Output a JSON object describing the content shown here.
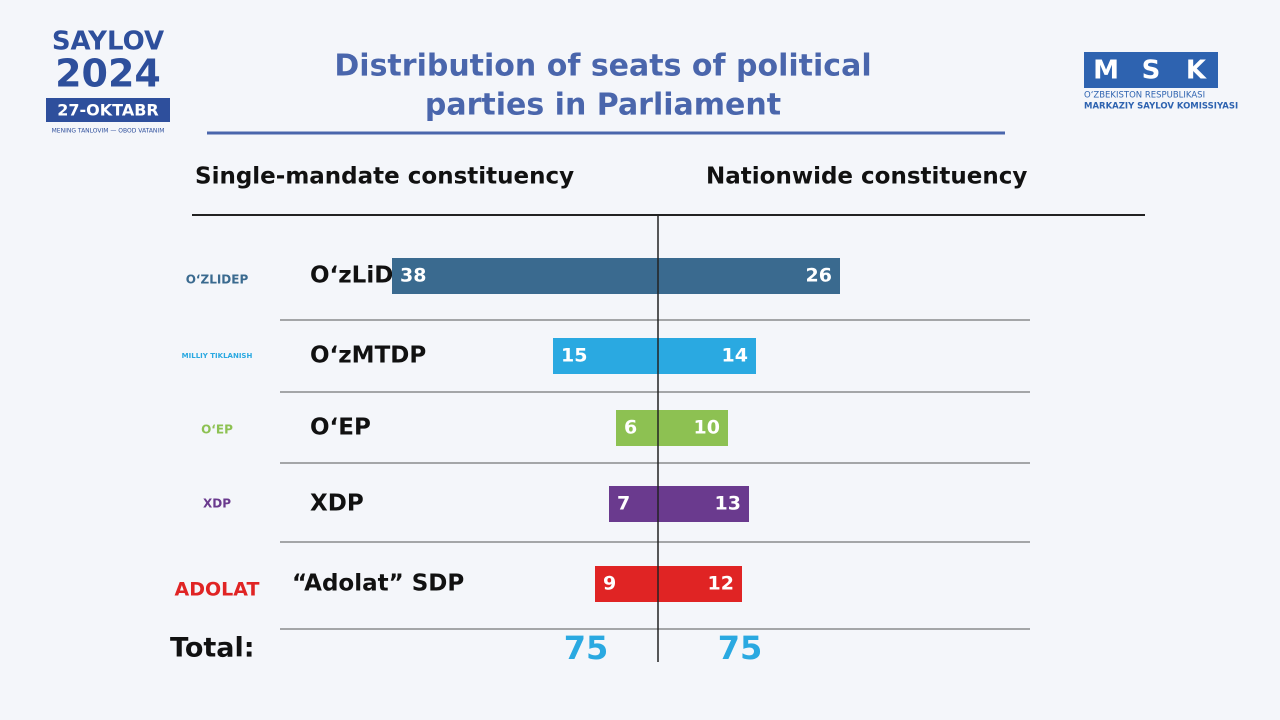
{
  "header": {
    "brand": "SAYLOV",
    "year": "2024",
    "date": "27-OKTABR",
    "slogan": "MENING TANLOVIM — OBOD VATANIM",
    "msk": [
      "M",
      "S",
      "K"
    ],
    "msk_line1": "O‘ZBEKISTON RESPUBLIKASI",
    "msk_line2": "MARKAZIY SAYLOV KOMISSIYASI"
  },
  "party_logos": [
    "O‘ZLIDEP",
    "MILLIY TIKLANISH",
    "O‘EP",
    "XDP",
    "ADOLAT"
  ],
  "chart_data": {
    "type": "diverging_bar",
    "title": [
      "Distribution of seats of political",
      "parties in Parliament"
    ],
    "categories": [
      "O‘zLiDeP",
      "O‘zMTDP",
      "O‘EP",
      "XDP",
      "“Adolat” SDP"
    ],
    "colors": [
      "#3a6a8f",
      "#2aa9e1",
      "#8dc152",
      "#6a3a8e",
      "#e02424"
    ],
    "series": [
      {
        "name": "Single-mandate constituency",
        "values": [
          38,
          15,
          6,
          7,
          9
        ]
      },
      {
        "name": "Nationwide constituency",
        "values": [
          26,
          14,
          10,
          13,
          12
        ]
      }
    ],
    "total_label": "Total:",
    "totals": [
      75,
      75
    ],
    "total_color": "#2aa9e1"
  }
}
